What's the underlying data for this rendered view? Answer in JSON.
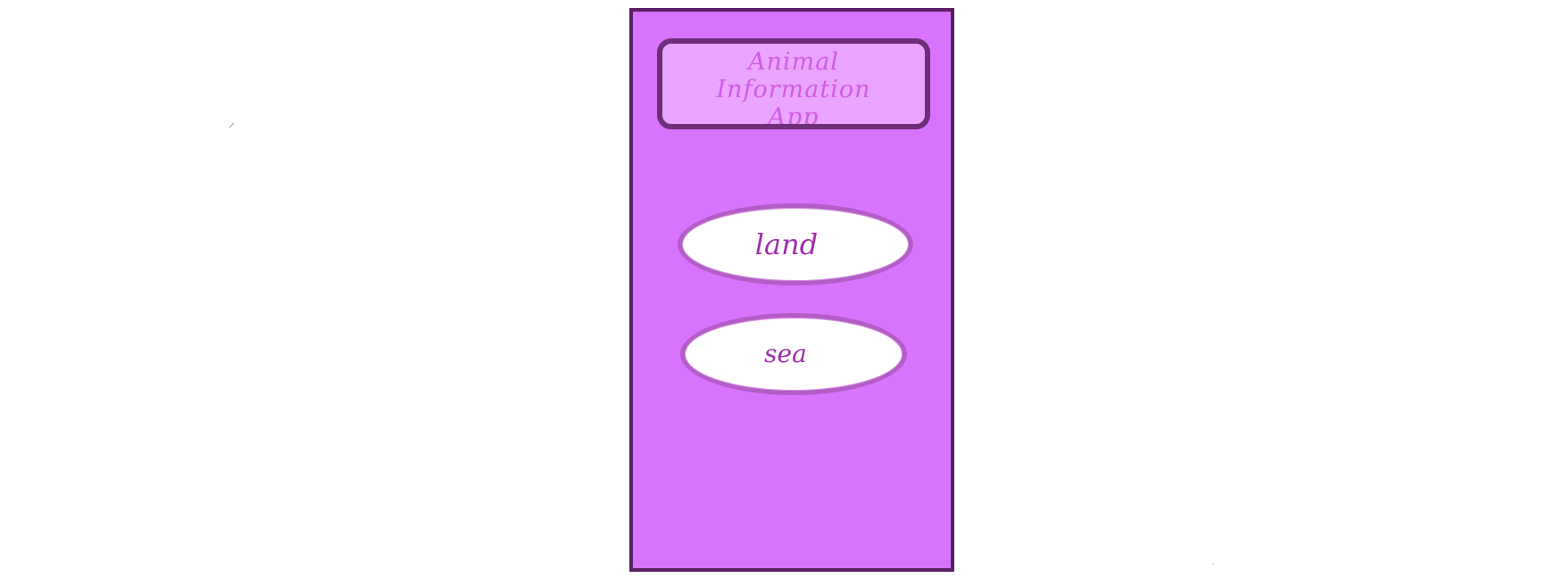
{
  "app": {
    "title": "Animal Information App"
  },
  "buttons": {
    "land_label": "land",
    "sea_label": "sea"
  },
  "colors": {
    "phone_background": "#d873fe",
    "phone_border": "#5a1f64",
    "header_background": "#e9a5ff",
    "header_border": "#6c2f78",
    "header_text": "#d35be6",
    "button_background": "#ffffff",
    "button_border": "#b35cc6",
    "button_text": "#9e2fa8"
  }
}
